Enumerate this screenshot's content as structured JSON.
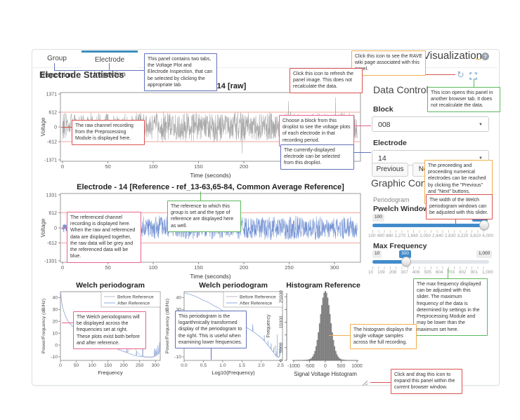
{
  "tabs": {
    "items": [
      {
        "label": "Group Inspection",
        "active": false
      },
      {
        "label": "Electrode Inspection",
        "active": true
      }
    ]
  },
  "header": {
    "title": "Visualization",
    "help_icon": "?",
    "icons": {
      "refresh": "refresh-icon",
      "open_new_tab": "expand-icon"
    }
  },
  "panel": {
    "heading": "Electrode Statistics"
  },
  "sidebar": {
    "data_control": {
      "title": "Data Control",
      "block_label": "Block",
      "block_value": "008",
      "electrode_label": "Electrode",
      "electrode_value": "14",
      "previous_label": "Previous",
      "next_label": "Next"
    },
    "graphic_control": {
      "title": "Graphic Control",
      "periodogram_label": "Periodogram",
      "pwelch": {
        "label": "Pwelch Window Length",
        "min_label": "100",
        "value_label": "4,000",
        "ticks": [
          "100",
          "490",
          "880",
          "1,270",
          "1,660",
          "2,050",
          "2,440",
          "2,830",
          "3,220",
          "3,610",
          "4,000"
        ]
      },
      "maxfreq": {
        "label": "Max Frequency",
        "min_label": "10",
        "value_label": "300",
        "max_label": "1,000",
        "ticks": [
          "10",
          "109",
          "208",
          "307",
          "406",
          "505",
          "604",
          "703",
          "802",
          "901",
          "1,000"
        ]
      }
    }
  },
  "colors": {
    "tab_active": "#3c8dbc",
    "slider_blue": "#428bca",
    "raw_trace": "#a6a6a6",
    "ref_trace": "#7291d3",
    "threshold_red": "#ee8878",
    "before_reference": "#b9bdc3",
    "after_reference": "#8fa8dc",
    "histogram_bar": "#8a8a8a",
    "callout_red": "#d9534f",
    "callout_pink": "#e8618c",
    "callout_green": "#5cb85c",
    "callout_orange": "#f0ad4e",
    "callout_blue": "#6272bb"
  },
  "callouts": [
    {
      "color": "#6272bb",
      "text": "This panel contains two tabs, the Voltage Plot and Electrode Inspection, that can be selected by clicking the appropriate tab."
    },
    {
      "color": "#f0ad4e",
      "text": "Click this icon to see the RAVE wiki page associated with this panel."
    },
    {
      "color": "#d9534f",
      "text": "Click this icon to refresh the panel image. This does not recalculate the data."
    },
    {
      "color": "#5cb85c",
      "text": "This icon opens this panel in another browser tab. It does not recalculate the data."
    },
    {
      "color": "#d9534f",
      "text": "The raw channel recording from the Preprocessing Module is displayed here."
    },
    {
      "color": "#e8618c",
      "text": "Choose a block from this droplist to see the voltage plots of each electrode in that recording period."
    },
    {
      "color": "#6272bb",
      "text": "The currently-displayed electrode can be selected from this droplist."
    },
    {
      "color": "#f0ad4e",
      "text": "The preceeding and proceeding numerical electrodes can be reached by clicking the \"Previous\" and \"Next\" buttons, respectively."
    },
    {
      "color": "#5cb85c",
      "text": "The reference to which this group is set and the type of reference are displayed here as well."
    },
    {
      "color": "#e8618c",
      "text": "The referenced channel recording is displayed here. When the raw and referenced data are displayed together, the raw data will be grey and the referenced data will be blue."
    },
    {
      "color": "#d9534f",
      "text": "The width of the Welch periodogram windows can be adjusted with this slider."
    },
    {
      "color": "#5cb85c",
      "text": "The max frequency displayed can be adjusted with this slider. The maximum frequency of the data is determined by settings in the Preprocessing Module and may be lower than the maximum set here."
    },
    {
      "color": "#e8618c",
      "text": "The Welch periodograms will be displayed across the frequencies set at right. These plots exist both before and after reference."
    },
    {
      "color": "#6272bb",
      "text": "This periodogram is the logarithmically transformed display of the periodogram to the right. This is useful when examining lower frequencies."
    },
    {
      "color": "#f0ad4e",
      "text": "The histogram displays the single voltage samples across the full recording."
    },
    {
      "color": "#d9534f",
      "text": "Click and drag this icon to expand this panel within the current browser window."
    }
  ],
  "chart_data": [
    {
      "id": "chart-raw",
      "type": "voltage-line",
      "title": "Electrode - 14 [raw]",
      "xlabel": "Time (seconds)",
      "ylabel": "Voltage",
      "xlim": [
        0,
        325
      ],
      "x_ticks": [
        0,
        50,
        100,
        150,
        200,
        250,
        300
      ],
      "y_ticks": [
        1371,
        612,
        0,
        -612,
        -1371
      ],
      "threshold_lines": [
        612,
        -612
      ],
      "line_color": "#a6a6a6",
      "threshold_color": "#ee8878",
      "noise": {
        "seed": 13,
        "transition": 78,
        "amp_early": 620,
        "amp_late": 560,
        "neg_spikes": false,
        "late_tall": true
      }
    },
    {
      "id": "chart-ref",
      "type": "voltage-line",
      "title": "Electrode - 14 [Reference - ref_13-63,65-84, Common Average Reference]",
      "xlabel": "Time (seconds)",
      "ylabel": "Voltage",
      "xlim": [
        0,
        325
      ],
      "x_ticks": [
        0,
        50,
        100,
        150,
        200,
        250,
        300
      ],
      "y_ticks": [
        1331,
        612,
        0,
        -612,
        -1331
      ],
      "threshold_lines": [
        612,
        -612
      ],
      "line_color": "#7291d3",
      "threshold_color": "#ee8878",
      "noise": {
        "seed": 29,
        "transition": 78,
        "amp_early": 180,
        "amp_late": 430,
        "neg_spikes": true,
        "late_tall": true
      }
    },
    {
      "id": "chart-welch-linear",
      "type": "welch",
      "title": "Welch periodogram",
      "xlabel": "Frequency",
      "ylabel": "Power/Frequency (dB/Hz)",
      "xscale": "linear",
      "x_ticks": [
        0,
        50,
        100,
        150,
        200,
        250,
        300
      ],
      "x_tick_labels": [
        "0",
        "50",
        "100",
        "150",
        "200",
        "250",
        "300"
      ],
      "y_ticks": [
        40,
        30,
        20,
        10,
        0,
        -10
      ],
      "legend": [
        "Before Reference",
        "After Reference"
      ],
      "colors": {
        "before": "#b9bdc3",
        "after": "#8fa8dc"
      },
      "after_anchors": [
        [
          1,
          44
        ],
        [
          3,
          38
        ],
        [
          6,
          33
        ],
        [
          10,
          29
        ],
        [
          15,
          25
        ],
        [
          22,
          21
        ],
        [
          30,
          18
        ],
        [
          45,
          14
        ],
        [
          60,
          11.5
        ],
        [
          80,
          8.5
        ],
        [
          100,
          6
        ],
        [
          120,
          3.5
        ],
        [
          140,
          1
        ],
        [
          160,
          -1.5
        ],
        [
          180,
          -3.5
        ],
        [
          200,
          -5.5
        ],
        [
          215,
          -7
        ],
        [
          230,
          -8.5
        ],
        [
          245,
          -9.5
        ],
        [
          260,
          -10
        ],
        [
          275,
          -10.3
        ],
        [
          290,
          -10.3
        ],
        [
          300,
          -9.5
        ],
        [
          308,
          -8
        ],
        [
          315,
          -6
        ]
      ],
      "after_spikes": [
        [
          60,
          6
        ],
        [
          120,
          5
        ],
        [
          150,
          4
        ],
        [
          180,
          5
        ],
        [
          210,
          4
        ],
        [
          240,
          4
        ],
        [
          260,
          19
        ],
        [
          297,
          7
        ],
        [
          303,
          6
        ],
        [
          308,
          8
        ],
        [
          313,
          9
        ]
      ],
      "before_anchors": [
        [
          1,
          44
        ],
        [
          3,
          38
        ],
        [
          6,
          33
        ],
        [
          10,
          29
        ],
        [
          15,
          25
        ],
        [
          22,
          21
        ],
        [
          30,
          18
        ],
        [
          45,
          14
        ],
        [
          60,
          11.5
        ],
        [
          80,
          8.5
        ],
        [
          100,
          6
        ],
        [
          120,
          3.5
        ],
        [
          140,
          1
        ],
        [
          160,
          -1.5
        ],
        [
          180,
          -3.5
        ],
        [
          200,
          -5.5
        ],
        [
          213,
          -6
        ],
        [
          222,
          -2
        ],
        [
          228,
          -0.5
        ],
        [
          233,
          -1
        ],
        [
          240,
          -5
        ],
        [
          250,
          -8.5
        ],
        [
          260,
          -9.5
        ],
        [
          275,
          -10
        ],
        [
          290,
          -10
        ],
        [
          300,
          -9
        ],
        [
          308,
          -6.5
        ],
        [
          315,
          -5
        ]
      ],
      "before_spikes": [
        [
          60,
          5
        ],
        [
          120,
          4
        ],
        [
          180,
          4
        ],
        [
          300,
          5
        ]
      ]
    },
    {
      "id": "chart-welch-log",
      "type": "welch",
      "title": "Welch periodogram",
      "xlabel": "Log10(Frequency)",
      "ylabel": "Power/Frequency (dB/Hz)",
      "xscale": "log10",
      "x_ticks": [
        0,
        0.5,
        1,
        1.5,
        2,
        2.5
      ],
      "x_tick_labels": [
        "0.0",
        "0.5",
        "1.0",
        "1.5",
        "2.0",
        "2.5"
      ],
      "y_ticks": [
        40,
        30,
        20,
        10,
        0,
        -10
      ],
      "legend": [
        "Before Reference",
        "After Reference"
      ],
      "colors": {
        "before": "#b9bdc3",
        "after": "#8fa8dc"
      },
      "after_anchors": [
        [
          1,
          44
        ],
        [
          3,
          38
        ],
        [
          6,
          33
        ],
        [
          10,
          29
        ],
        [
          15,
          25
        ],
        [
          22,
          21
        ],
        [
          30,
          18
        ],
        [
          45,
          14
        ],
        [
          60,
          11.5
        ],
        [
          80,
          8.5
        ],
        [
          100,
          6
        ],
        [
          120,
          3.5
        ],
        [
          140,
          1
        ],
        [
          160,
          -1.5
        ],
        [
          180,
          -3.5
        ],
        [
          200,
          -5.5
        ],
        [
          215,
          -7
        ],
        [
          230,
          -8.5
        ],
        [
          245,
          -9.5
        ],
        [
          260,
          -10
        ],
        [
          275,
          -10.3
        ],
        [
          290,
          -10.3
        ],
        [
          300,
          -9.5
        ],
        [
          308,
          -8
        ],
        [
          315,
          -6
        ]
      ],
      "after_spikes": [
        [
          60,
          6
        ],
        [
          120,
          5
        ],
        [
          150,
          4
        ],
        [
          180,
          5
        ],
        [
          210,
          4
        ],
        [
          240,
          4
        ],
        [
          260,
          19
        ],
        [
          297,
          7
        ],
        [
          303,
          6
        ],
        [
          308,
          8
        ],
        [
          313,
          9
        ]
      ],
      "before_anchors": [
        [
          1,
          44
        ],
        [
          3,
          38
        ],
        [
          6,
          33
        ],
        [
          10,
          29
        ],
        [
          15,
          25
        ],
        [
          22,
          21
        ],
        [
          30,
          18
        ],
        [
          45,
          14
        ],
        [
          60,
          11.5
        ],
        [
          80,
          8.5
        ],
        [
          100,
          6
        ],
        [
          120,
          3.5
        ],
        [
          140,
          1
        ],
        [
          160,
          -1.5
        ],
        [
          180,
          -3.5
        ],
        [
          200,
          -5.5
        ],
        [
          213,
          -6
        ],
        [
          222,
          -2
        ],
        [
          228,
          -0.5
        ],
        [
          233,
          -1
        ],
        [
          240,
          -5
        ],
        [
          250,
          -8.5
        ],
        [
          260,
          -9.5
        ],
        [
          275,
          -10
        ],
        [
          290,
          -10
        ],
        [
          300,
          -9
        ],
        [
          308,
          -6.5
        ],
        [
          315,
          -5
        ]
      ],
      "before_spikes": [
        [
          60,
          5
        ],
        [
          120,
          4
        ],
        [
          180,
          4
        ],
        [
          300,
          5
        ]
      ]
    },
    {
      "id": "chart-hist",
      "type": "histogram",
      "title": "Histogram Reference",
      "xlabel": "Signal Voltage Histogram",
      "ylabel": "Frequency",
      "x_ticks": [
        -1000,
        -500,
        0,
        500,
        1000
      ],
      "y_tick_marks": [
        0,
        5000,
        10000,
        15000,
        20000,
        25000
      ],
      "y_tick_labels": [
        [
          0,
          "0"
        ],
        [
          5000,
          "5000"
        ],
        [
          15000,
          "15000"
        ],
        [
          25000,
          "25000"
        ]
      ],
      "gaussian": {
        "sigma": 160,
        "peak": 26800,
        "tail_peak": 400,
        "tail_sigma": 430
      },
      "bar_color": "#8a8a8a"
    }
  ]
}
